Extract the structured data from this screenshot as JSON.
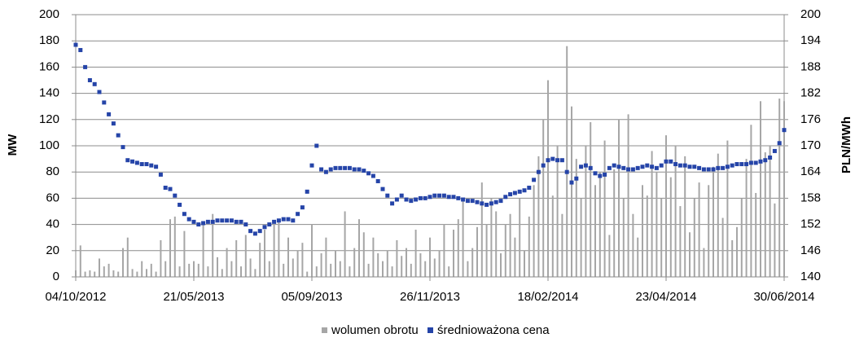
{
  "chart_data": {
    "type": "bar-line",
    "y_label": "MW",
    "y2_label": "PLN/MWh",
    "categories": [
      "04/10/2012",
      null,
      null,
      null,
      null,
      null,
      null,
      null,
      null,
      null,
      null,
      null,
      null,
      null,
      null,
      null,
      null,
      null,
      null,
      null,
      null,
      null,
      null,
      null,
      null,
      "21/05/2013",
      null,
      null,
      null,
      null,
      null,
      null,
      null,
      null,
      null,
      null,
      null,
      null,
      null,
      null,
      null,
      null,
      null,
      null,
      null,
      null,
      null,
      null,
      null,
      null,
      "05/09/2013",
      null,
      null,
      null,
      null,
      null,
      null,
      null,
      null,
      null,
      null,
      null,
      null,
      null,
      null,
      null,
      null,
      null,
      null,
      null,
      null,
      null,
      null,
      null,
      null,
      "26/11/2013",
      null,
      null,
      null,
      null,
      null,
      null,
      null,
      null,
      null,
      null,
      null,
      null,
      null,
      null,
      null,
      null,
      null,
      null,
      null,
      null,
      null,
      null,
      null,
      null,
      "18/02/2014",
      null,
      null,
      null,
      null,
      null,
      null,
      null,
      null,
      null,
      null,
      null,
      null,
      null,
      null,
      null,
      null,
      null,
      null,
      null,
      null,
      null,
      null,
      null,
      null,
      "23/04/2014",
      null,
      null,
      null,
      null,
      null,
      null,
      null,
      null,
      null,
      null,
      null,
      null,
      null,
      null,
      null,
      null,
      null,
      null,
      null,
      null,
      null,
      null,
      null,
      null,
      "30/06/2014"
    ],
    "series": [
      {
        "name": "wolumen obrotu",
        "color": "#a6a6a6",
        "kind": "bar",
        "axis": "y",
        "values": [
          5,
          24,
          4,
          5,
          4,
          14,
          8,
          10,
          5,
          4,
          22,
          30,
          6,
          4,
          12,
          6,
          10,
          4,
          28,
          12,
          44,
          46,
          8,
          35,
          10,
          12,
          10,
          40,
          8,
          48,
          15,
          6,
          22,
          12,
          28,
          8,
          32,
          14,
          6,
          26,
          36,
          12,
          40,
          44,
          10,
          30,
          14,
          20,
          26,
          4,
          40,
          8,
          18,
          30,
          10,
          20,
          12,
          50,
          8,
          22,
          44,
          34,
          10,
          30,
          18,
          12,
          20,
          8,
          28,
          16,
          22,
          10,
          36,
          18,
          12,
          30,
          14,
          20,
          40,
          8,
          36,
          44,
          60,
          12,
          22,
          38,
          72,
          40,
          60,
          50,
          18,
          40,
          48,
          30,
          60,
          20,
          46,
          70,
          92,
          120,
          150,
          62,
          100,
          48,
          176,
          130,
          90,
          60,
          100,
          118,
          70,
          80,
          104,
          32,
          82,
          120,
          60,
          124,
          48,
          30,
          70,
          62,
          96,
          80,
          60,
          108,
          76,
          100,
          54,
          92,
          34,
          60,
          72,
          22,
          70,
          84,
          94,
          45,
          104,
          28,
          38,
          60,
          90,
          116,
          64,
          134,
          95,
          100,
          56,
          136,
          134
        ]
      },
      {
        "name": "średnioważona cena",
        "color": "#2544a8",
        "kind": "marker",
        "axis": "y2",
        "values": [
          193.1,
          191.9,
          188,
          185,
          184.1,
          182.3,
          179.9,
          177.2,
          175.1,
          172.4,
          169.7,
          166.7,
          166.4,
          166.1,
          165.8,
          165.8,
          165.5,
          165.2,
          163.4,
          160.4,
          160.1,
          158.6,
          156.5,
          154.4,
          153.2,
          152.6,
          152,
          152.3,
          152.6,
          152.6,
          152.9,
          152.9,
          152.9,
          152.9,
          152.6,
          152.6,
          152,
          150.5,
          149.9,
          150.5,
          151.4,
          152,
          152.6,
          152.9,
          153.2,
          153.2,
          152.9,
          154.4,
          155.9,
          159.5,
          165.5,
          170,
          164.6,
          164,
          164.6,
          164.9,
          164.9,
          164.9,
          164.9,
          164.6,
          164.6,
          164.3,
          163.7,
          163.1,
          161.9,
          160.1,
          158.6,
          156.8,
          157.7,
          158.6,
          157.7,
          157.4,
          157.7,
          158,
          158,
          158.3,
          158.6,
          158.6,
          158.6,
          158.3,
          158.3,
          158,
          157.7,
          157.4,
          157.4,
          157.1,
          156.8,
          156.5,
          156.8,
          157.1,
          157.4,
          158.3,
          158.9,
          159.2,
          159.5,
          159.8,
          160.4,
          162.2,
          164,
          165.5,
          166.7,
          167,
          166.7,
          166.7,
          164,
          161.6,
          162.5,
          165.2,
          165.5,
          164.9,
          163.7,
          163.1,
          163.4,
          164.9,
          165.5,
          165.2,
          164.9,
          164.6,
          164.6,
          164.9,
          165.2,
          165.5,
          165.2,
          164.9,
          165.5,
          166.4,
          166.4,
          165.8,
          165.5,
          165.5,
          165.2,
          165.2,
          164.9,
          164.6,
          164.6,
          164.6,
          164.9,
          164.9,
          165.2,
          165.5,
          165.8,
          165.8,
          165.8,
          166.1,
          166.1,
          166.4,
          166.7,
          167.3,
          168.8,
          170.6,
          173.6
        ]
      }
    ],
    "ylim": [
      0,
      200
    ],
    "yticks": [
      0,
      20,
      40,
      60,
      80,
      100,
      120,
      140,
      160,
      180,
      200
    ],
    "y2lim": [
      140,
      200
    ],
    "y2ticks": [
      140,
      146,
      152,
      158,
      164,
      170,
      176,
      182,
      188,
      194,
      200
    ],
    "grid": true,
    "legend": "bottom"
  }
}
